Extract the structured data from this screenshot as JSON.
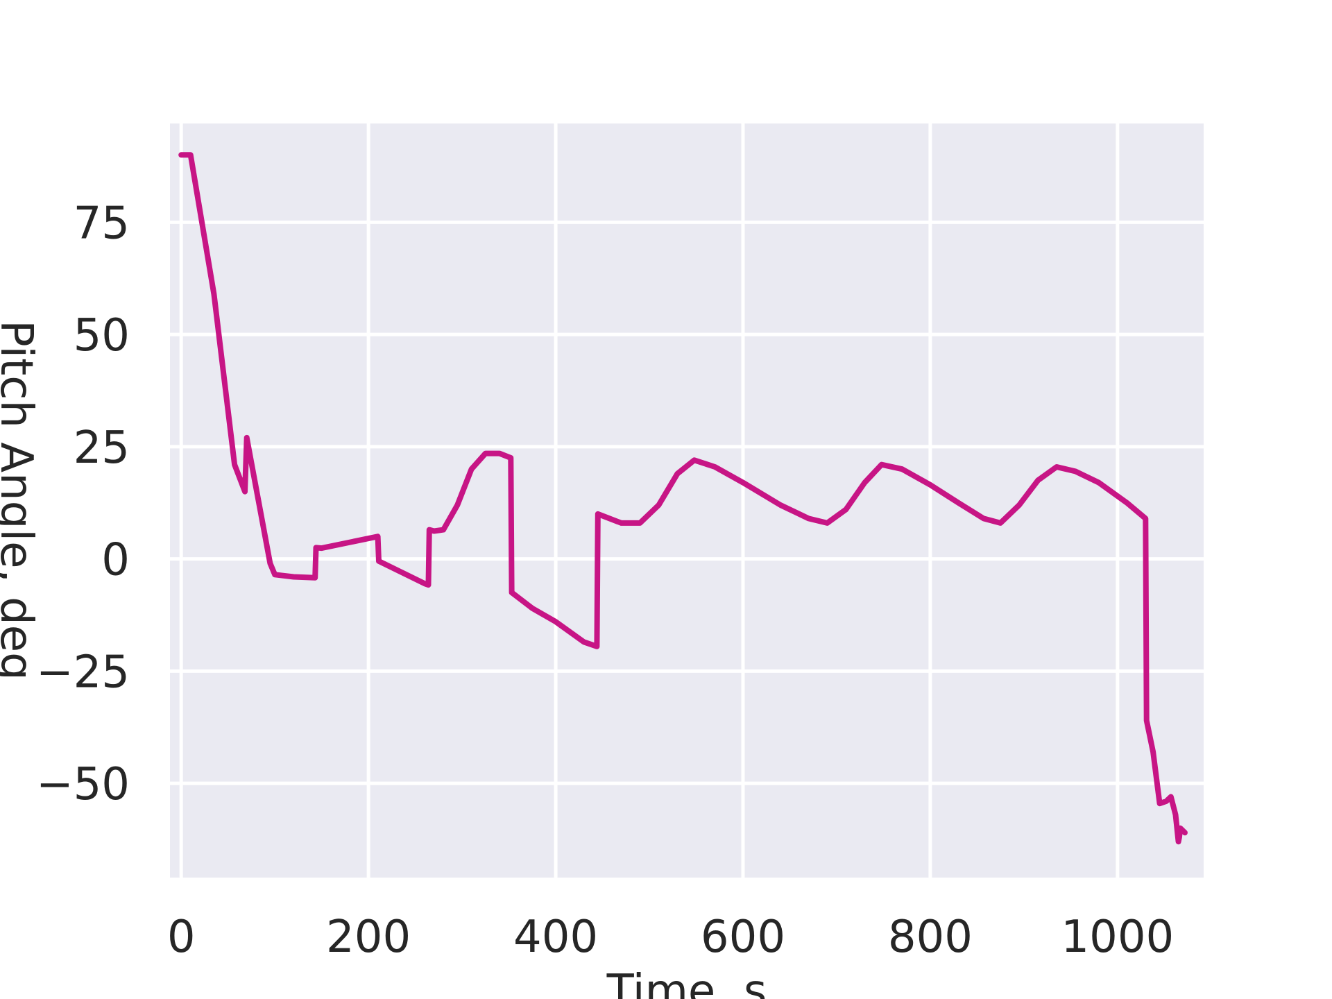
{
  "chart_data": {
    "type": "line",
    "title": "",
    "xlabel": "Time, s",
    "ylabel": "Pitch Angle, deg",
    "xlim": [
      -12,
      1092
    ],
    "ylim": [
      -71,
      97
    ],
    "x_ticks": [
      0,
      200,
      400,
      600,
      800,
      1000
    ],
    "x_tick_labels": [
      "0",
      "200",
      "400",
      "600",
      "800",
      "1000"
    ],
    "y_ticks": [
      -50,
      -25,
      0,
      25,
      50,
      75
    ],
    "y_tick_labels": [
      "−50",
      "−25",
      "0",
      "25",
      "50",
      "75"
    ],
    "grid": true,
    "background_color": "#eaeaf2",
    "grid_color": "#ffffff",
    "series": [
      {
        "color": "#c71585",
        "points": [
          [
            0,
            90
          ],
          [
            10,
            90
          ],
          [
            35,
            59
          ],
          [
            57,
            21
          ],
          [
            68,
            15
          ],
          [
            70,
            27
          ],
          [
            78,
            18
          ],
          [
            95,
            -1
          ],
          [
            100,
            -3.5
          ],
          [
            120,
            -4
          ],
          [
            143,
            -4.2
          ],
          [
            144,
            2.5
          ],
          [
            150,
            2.4
          ],
          [
            210,
            5
          ],
          [
            211,
            -0.5
          ],
          [
            260,
            -5.5
          ],
          [
            264,
            -5.8
          ],
          [
            265,
            6.5
          ],
          [
            270,
            6.2
          ],
          [
            280,
            6.5
          ],
          [
            295,
            12
          ],
          [
            310,
            20
          ],
          [
            325,
            23.5
          ],
          [
            340,
            23.5
          ],
          [
            352,
            22.5
          ],
          [
            353,
            -7.5
          ],
          [
            375,
            -11
          ],
          [
            400,
            -14
          ],
          [
            430,
            -18.5
          ],
          [
            444,
            -19.5
          ],
          [
            445,
            10
          ],
          [
            470,
            8
          ],
          [
            490,
            8
          ],
          [
            510,
            12
          ],
          [
            530,
            19
          ],
          [
            548,
            22
          ],
          [
            570,
            20.5
          ],
          [
            600,
            17
          ],
          [
            640,
            12
          ],
          [
            670,
            9
          ],
          [
            690,
            8
          ],
          [
            710,
            11
          ],
          [
            730,
            17
          ],
          [
            748,
            21
          ],
          [
            770,
            20
          ],
          [
            800,
            16.5
          ],
          [
            830,
            12.5
          ],
          [
            857,
            9
          ],
          [
            875,
            8
          ],
          [
            895,
            12
          ],
          [
            915,
            17.5
          ],
          [
            935,
            20.5
          ],
          [
            955,
            19.5
          ],
          [
            980,
            17
          ],
          [
            1010,
            12.5
          ],
          [
            1030,
            9
          ],
          [
            1031,
            -36
          ],
          [
            1038,
            -43
          ],
          [
            1045,
            -54.5
          ],
          [
            1052,
            -54
          ],
          [
            1057,
            -53
          ],
          [
            1062,
            -57
          ],
          [
            1065,
            -63
          ],
          [
            1066,
            -62
          ],
          [
            1067,
            -60
          ],
          [
            1072,
            -61
          ]
        ]
      }
    ]
  }
}
